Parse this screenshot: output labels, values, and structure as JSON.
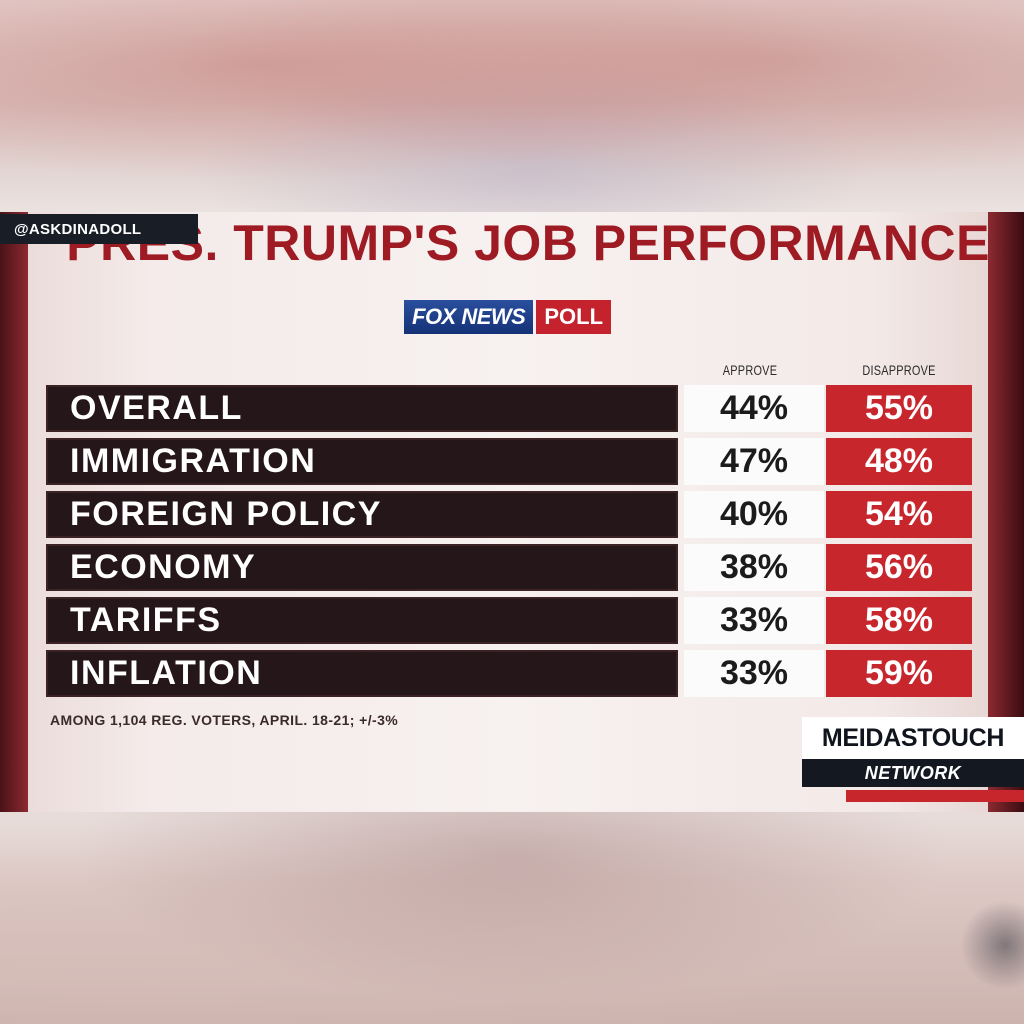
{
  "overlay": {
    "handle": "@ASKDINADOLL"
  },
  "header": {
    "title": "PRES. TRUMP'S JOB PERFORMANCE",
    "logo_fox": "FOX NEWS",
    "logo_poll": "POLL"
  },
  "chart_data": {
    "type": "table",
    "title": "PRES. TRUMP'S JOB PERFORMANCE",
    "columns": [
      "APPROVE",
      "DISAPPROVE"
    ],
    "rows": [
      {
        "label": "OVERALL",
        "approve": "44%",
        "disapprove": "55%"
      },
      {
        "label": "IMMIGRATION",
        "approve": "47%",
        "disapprove": "48%"
      },
      {
        "label": "FOREIGN POLICY",
        "approve": "40%",
        "disapprove": "54%"
      },
      {
        "label": "ECONOMY",
        "approve": "38%",
        "disapprove": "56%"
      },
      {
        "label": "TARIFFS",
        "approve": "33%",
        "disapprove": "58%"
      },
      {
        "label": "INFLATION",
        "approve": "33%",
        "disapprove": "59%"
      }
    ],
    "footnote": "AMONG 1,104 REG. VOTERS, APRIL. 18-21; +/-3%"
  },
  "branding": {
    "network_top": "MEIDASTOUCH",
    "network_bottom": "NETWORK"
  },
  "colors": {
    "title_red": "#9e1b24",
    "label_bg": "#251619",
    "disapprove_red": "#c8262d",
    "approve_bg": "#fbfbfb"
  }
}
